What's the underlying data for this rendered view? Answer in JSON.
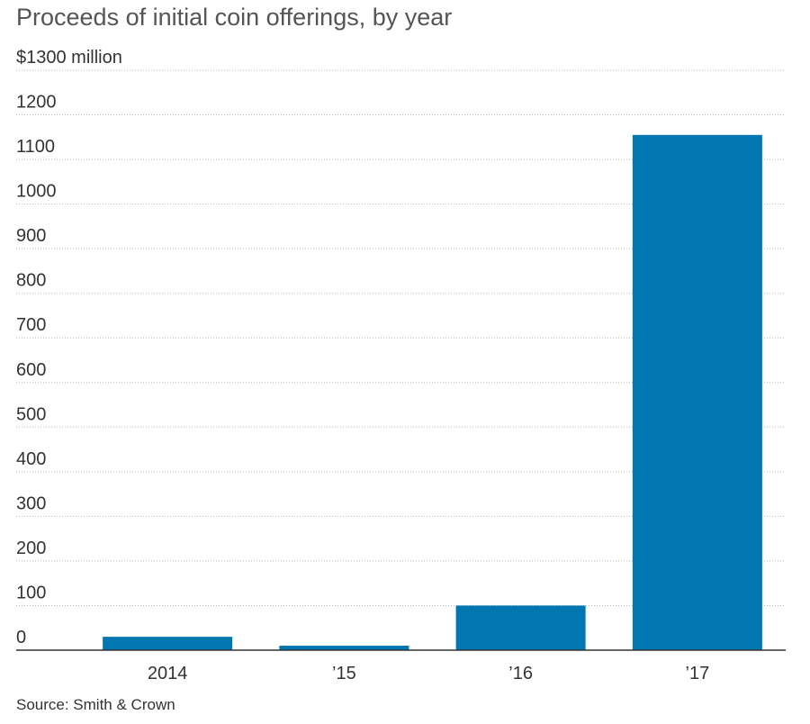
{
  "chart_data": {
    "type": "bar",
    "title": "Proceeds of initial coin offerings, by year",
    "ylabel": "",
    "xlabel": "",
    "categories": [
      "2014",
      "’15",
      "’16",
      "’17"
    ],
    "values": [
      30,
      10,
      100,
      1155
    ],
    "ylim": [
      0,
      1300
    ],
    "yticks": [
      0,
      100,
      200,
      300,
      400,
      500,
      600,
      700,
      800,
      900,
      1000,
      1100,
      1200,
      1300
    ],
    "ytick_labels": [
      "0",
      "100",
      "200",
      "300",
      "400",
      "500",
      "600",
      "700",
      "800",
      "900",
      "1000",
      "1100",
      "1200",
      "$1300 million"
    ],
    "grid": true,
    "legend": "none",
    "bar_color": "#0077b0",
    "source": "Source: Smith & Crown"
  }
}
